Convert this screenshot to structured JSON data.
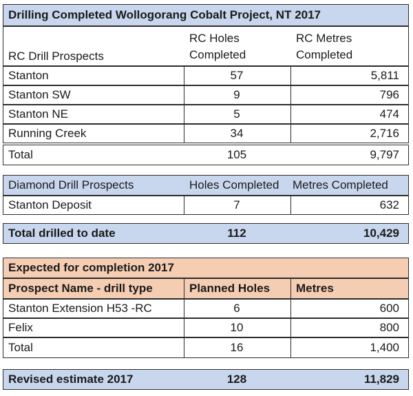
{
  "title": "Drilling Completed Wollogorang Cobalt Project, NT 2017",
  "rc": {
    "header": {
      "col1": "RC Drill Prospects",
      "col2_line1": "RC Holes",
      "col2_line2": "Completed",
      "col3_line1": "RC Metres",
      "col3_line2": "Completed"
    },
    "rows": [
      {
        "name": "Stanton",
        "holes": "57",
        "metres": "5,811"
      },
      {
        "name": "Stanton SW",
        "holes": "9",
        "metres": "796"
      },
      {
        "name": "Stanton NE",
        "holes": "5",
        "metres": "474"
      },
      {
        "name": "Running Creek",
        "holes": "34",
        "metres": "2,716"
      }
    ],
    "total": {
      "name": "Total",
      "holes": "105",
      "metres": "9,797"
    }
  },
  "diamond": {
    "header": {
      "col1": "Diamond Drill Prospects",
      "col2": "Holes Completed",
      "col3": "Metres Completed"
    },
    "rows": [
      {
        "name": "Stanton Deposit",
        "holes": "7",
        "metres": "632"
      }
    ]
  },
  "total_to_date": {
    "name": "Total drilled to date",
    "holes": "112",
    "metres": "10,429"
  },
  "expected": {
    "title": "Expected for completion 2017",
    "header": {
      "col1": "Prospect Name - drill type",
      "col2": "Planned Holes",
      "col3": "Metres"
    },
    "rows": [
      {
        "name": "Stanton Extension H53 -RC",
        "holes": "6",
        "metres": "600"
      },
      {
        "name": "Felix",
        "holes": "10",
        "metres": "800"
      }
    ],
    "total": {
      "name": "Total",
      "holes": "16",
      "metres": "1,400"
    }
  },
  "revised": {
    "name": "Revised estimate 2017",
    "holes": "128",
    "metres": "11,829"
  },
  "colors": {
    "header_blue": "#c8d7ee",
    "header_peach": "#f5cdb3",
    "border": "#2b2b2b"
  }
}
